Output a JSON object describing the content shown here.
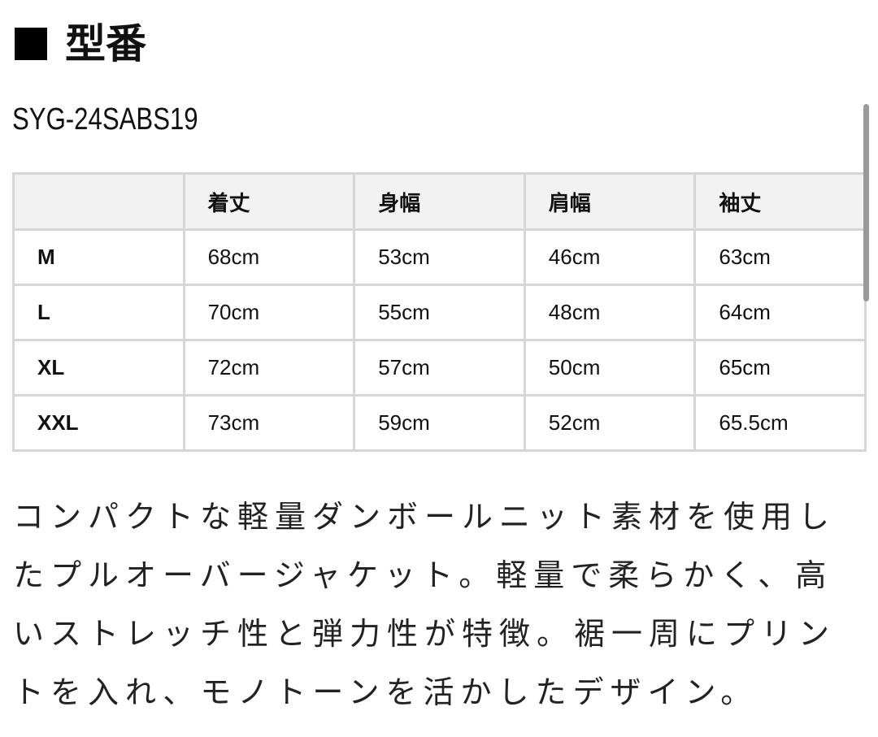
{
  "heading": {
    "icon": "black-square-icon",
    "text": "型番"
  },
  "model_number": "SYG-24SABS19",
  "size_table": {
    "headers": [
      "",
      "着丈",
      "身幅",
      "肩幅",
      "袖丈"
    ],
    "rows": [
      {
        "size": "M",
        "values": [
          "68cm",
          "53cm",
          "46cm",
          "63cm"
        ]
      },
      {
        "size": "L",
        "values": [
          "70cm",
          "55cm",
          "48cm",
          "64cm"
        ]
      },
      {
        "size": "XL",
        "values": [
          "72cm",
          "57cm",
          "50cm",
          "65cm"
        ]
      },
      {
        "size": "XXL",
        "values": [
          "73cm",
          "59cm",
          "52cm",
          "65.5cm"
        ]
      }
    ]
  },
  "description": "コンパクトな軽量ダンボールニット素材を使用したプルオーバージャケット。軽量で柔らかく、高いストレッチ性と弾力性が特徴。裾一周にプリントを入れ、モノトーンを活かしたデザイン。"
}
